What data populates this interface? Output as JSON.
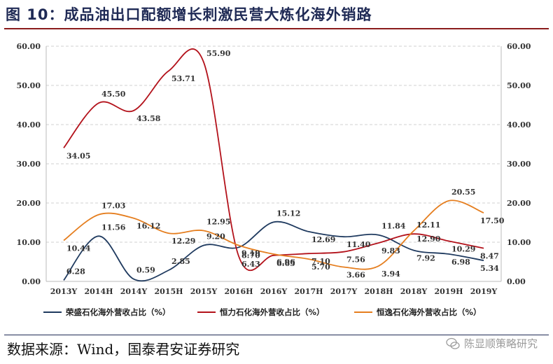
{
  "figure_title": "图 10：成品油出口配额增长刺激民营大炼化海外销路",
  "source_text": "数据来源：Wind，国泰君安证券研究",
  "watermark_text": "陈显顺策略研究",
  "chart_data": {
    "type": "line",
    "categories": [
      "2013Y",
      "2014H",
      "2014Y",
      "2015H",
      "2015Y",
      "2016H",
      "2016Y",
      "2017H",
      "2017Y",
      "2018H",
      "2018Y",
      "2019H",
      "2019Y"
    ],
    "ylim": [
      0,
      60
    ],
    "y_ticks": [
      "0.00",
      "10.00",
      "20.00",
      "30.00",
      "40.00",
      "50.00",
      "60.00"
    ],
    "y2lim": [
      0,
      60
    ],
    "y2_ticks": [
      "0.00",
      "10.00",
      "20.00",
      "30.00",
      "40.00",
      "50.00",
      "60.00"
    ],
    "grid": "horizontal dashed",
    "legend_position": "bottom",
    "series": [
      {
        "name": "荣盛石化海外营收占比（%）",
        "color": "#1f3a5f",
        "values": [
          0.28,
          11.56,
          0.59,
          2.85,
          9.2,
          8.7,
          15.12,
          12.69,
          11.4,
          11.84,
          7.92,
          6.98,
          5.34
        ],
        "labels": [
          "0.28",
          "11.56",
          "0.59",
          "2.85",
          "9.20",
          "8.70",
          "15.12",
          "12.69",
          "11.40",
          "11.84",
          "7.92",
          "6.98",
          "5.34"
        ]
      },
      {
        "name": "恒力石化海外营收占比（%）",
        "color": "#b3121b",
        "values": [
          34.05,
          45.5,
          43.58,
          53.71,
          55.9,
          6.43,
          6.65,
          7.1,
          7.56,
          9.83,
          12.11,
          10.29,
          8.47
        ],
        "labels": [
          "34.05",
          "45.50",
          "43.58",
          "53.71",
          "55.90",
          "6.43",
          "6.65",
          "7.10",
          "7.56",
          "9.83",
          "12.11",
          "10.29",
          "8.47"
        ]
      },
      {
        "name": "恒逸石化海外营收占比（%）",
        "color": "#e57e1f",
        "values": [
          10.44,
          17.03,
          16.12,
          12.29,
          12.95,
          9.19,
          6.96,
          5.7,
          3.66,
          3.94,
          12.9,
          20.55,
          17.5
        ],
        "labels": [
          "10.44",
          "17.03",
          "16.12",
          "12.29",
          "12.95",
          "9.19",
          "6.96",
          "5.70",
          "3.66",
          "3.94",
          "12.90",
          "20.55",
          "17.50"
        ]
      }
    ]
  }
}
